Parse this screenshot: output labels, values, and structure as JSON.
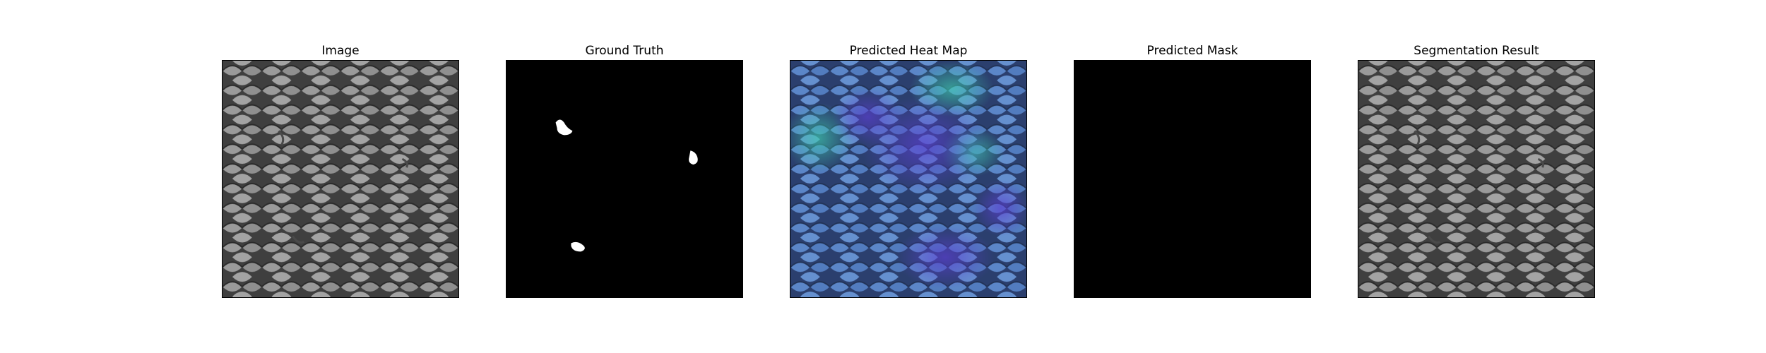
{
  "figure": {
    "panels": [
      {
        "id": "image",
        "title": "Image",
        "kind": "image"
      },
      {
        "id": "ground-truth",
        "title": "Ground Truth",
        "kind": "mask"
      },
      {
        "id": "heatmap",
        "title": "Predicted Heat Map",
        "kind": "heatmap"
      },
      {
        "id": "pred-mask",
        "title": "Predicted Mask",
        "kind": "blank"
      },
      {
        "id": "seg-result",
        "title": "Segmentation Result",
        "kind": "image"
      }
    ],
    "colors": {
      "background": "#ffffff",
      "mesh_light": "#9a9a9a",
      "mesh_dark": "#3d3d3d",
      "mask_fg": "#ffffff",
      "mask_bg": "#000000",
      "heat_blue": "#4f79c6",
      "heat_teal": "#3fa8a0",
      "heat_purple": "#5b4fd0"
    }
  }
}
